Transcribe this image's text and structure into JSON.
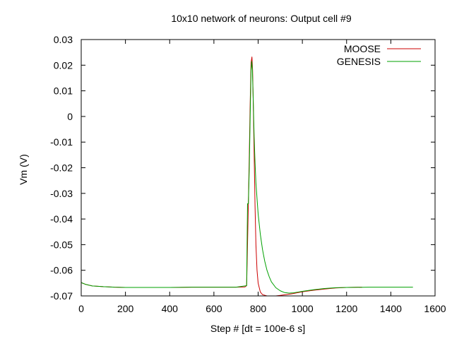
{
  "chart_data": {
    "type": "line",
    "title": "10x10 network of neurons: Output cell #9",
    "xlabel": "Step # [dt = 100e-6 s]",
    "ylabel": "Vm (V)",
    "xlim": [
      0,
      1600
    ],
    "ylim": [
      -0.07,
      0.03
    ],
    "x_ticks": [
      0,
      200,
      400,
      600,
      800,
      1000,
      1200,
      1400,
      1600
    ],
    "y_ticks": [
      0.03,
      0.02,
      0.01,
      0,
      -0.01,
      -0.02,
      -0.03,
      -0.04,
      -0.05,
      -0.06,
      -0.07
    ],
    "x_tick_labels": [
      "0",
      "200",
      "400",
      "600",
      "800",
      "1000",
      "1200",
      "1400",
      "1600"
    ],
    "y_tick_labels": [
      "0.03",
      "0.02",
      "0.01",
      "0",
      "-0.01",
      "-0.02",
      "-0.03",
      "-0.04",
      "-0.05",
      "-0.06",
      "-0.07"
    ],
    "grid": false,
    "legend_position": "top-right",
    "series": [
      {
        "name": "MOOSE",
        "color": "#cc0000",
        "x": [
          0,
          20,
          50,
          100,
          150,
          200,
          300,
          400,
          500,
          600,
          700,
          740,
          748,
          752,
          756,
          760,
          764,
          768,
          772,
          775,
          778,
          782,
          786,
          790,
          795,
          800,
          810,
          820,
          840,
          860,
          880,
          900,
          950,
          1000,
          1050,
          1100,
          1150,
          1200,
          1250,
          1270
        ],
        "y": [
          -0.0648,
          -0.0655,
          -0.0661,
          -0.0664,
          -0.0666,
          -0.0667,
          -0.0667,
          -0.0667,
          -0.0666,
          -0.0666,
          -0.0666,
          -0.0665,
          -0.066,
          -0.05,
          -0.033,
          -0.015,
          0.005,
          0.021,
          0.0232,
          0.018,
          0.005,
          -0.015,
          -0.035,
          -0.05,
          -0.06,
          -0.065,
          -0.0685,
          -0.0695,
          -0.07,
          -0.07,
          -0.07,
          -0.0698,
          -0.0692,
          -0.0684,
          -0.0678,
          -0.0673,
          -0.0669,
          -0.0667,
          -0.0666,
          -0.0666
        ]
      },
      {
        "name": "GENESIS",
        "color": "#00a000",
        "x": [
          0,
          20,
          50,
          100,
          150,
          200,
          300,
          400,
          500,
          600,
          700,
          748,
          752,
          756,
          760,
          764,
          768,
          771,
          774,
          778,
          782,
          786,
          790,
          800,
          810,
          820,
          830,
          840,
          850,
          860,
          880,
          900,
          920,
          940,
          960,
          980,
          1000,
          1050,
          1100,
          1150,
          1200,
          1300,
          1400,
          1500
        ],
        "y": [
          -0.0648,
          -0.0655,
          -0.0661,
          -0.0664,
          -0.0666,
          -0.0667,
          -0.0667,
          -0.0667,
          -0.0666,
          -0.0666,
          -0.0666,
          -0.066,
          -0.034,
          -0.034,
          -0.02,
          0.0,
          0.018,
          0.0215,
          0.018,
          0.006,
          -0.008,
          -0.018,
          -0.026,
          -0.038,
          -0.046,
          -0.052,
          -0.0565,
          -0.06,
          -0.0625,
          -0.0645,
          -0.0668,
          -0.068,
          -0.0687,
          -0.0689,
          -0.0688,
          -0.0685,
          -0.0682,
          -0.0676,
          -0.0671,
          -0.0668,
          -0.0667,
          -0.0666,
          -0.0666,
          -0.0666
        ]
      }
    ]
  }
}
